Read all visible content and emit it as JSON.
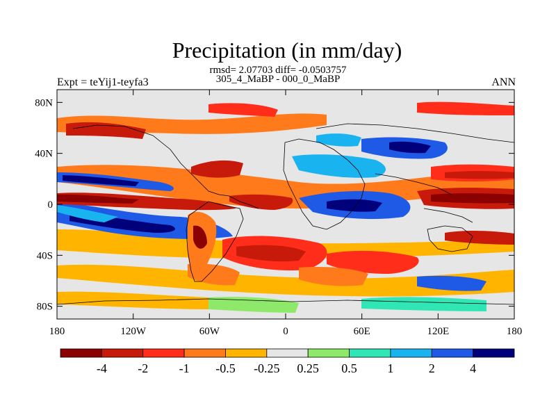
{
  "title": "Precipitation (in mm/day)",
  "stats": "rmsd= 2.07703 diff= -0.0503757",
  "subtitle": "305_4_MaBP - 000_0_MaBP",
  "left_label": "Expt = teYij1-teyfa3",
  "right_label": "ANN",
  "lat_ticks": [
    {
      "label": "80N",
      "lat": 80
    },
    {
      "label": "40N",
      "lat": 40
    },
    {
      "label": "0",
      "lat": 0
    },
    {
      "label": "40S",
      "lat": -40
    },
    {
      "label": "80S",
      "lat": -80
    }
  ],
  "lon_ticks": [
    {
      "label": "180",
      "lon": -180
    },
    {
      "label": "120W",
      "lon": -120
    },
    {
      "label": "60W",
      "lon": -60
    },
    {
      "label": "0",
      "lon": 0
    },
    {
      "label": "60E",
      "lon": 60
    },
    {
      "label": "120E",
      "lon": 120
    },
    {
      "label": "180",
      "lon": 180
    }
  ],
  "colorbar": {
    "colors": [
      "#8b0000",
      "#c81a0a",
      "#ff2d1a",
      "#ff7a1a",
      "#ffb400",
      "#e6e6e6",
      "#8ee86a",
      "#2fe6b4",
      "#19b4f0",
      "#1e5ae6",
      "#00007a"
    ],
    "labels": [
      "-4",
      "-2",
      "-1",
      "-0.5",
      "-0.25",
      "0.25",
      "0.5",
      "1",
      "2",
      "4"
    ]
  }
}
